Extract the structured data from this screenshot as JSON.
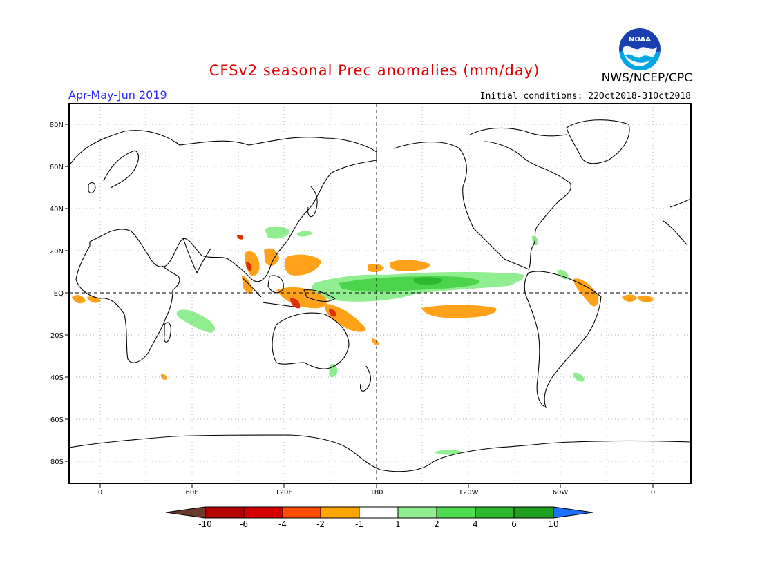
{
  "header": {
    "title": "CFSv2 seasonal Prec anomalies (mm/day)",
    "period": "Apr-May-Jun 2019",
    "initial_conditions": "Initial conditions: 22Oct2018-31Oct2018",
    "agency": "NWS/NCEP/CPC",
    "logo_text": "NOAA"
  },
  "map": {
    "lat_labels": [
      "80N",
      "60N",
      "40N",
      "20N",
      "EQ",
      "20S",
      "40S",
      "60S",
      "80S"
    ],
    "lon_labels": [
      "0",
      "60E",
      "120E",
      "180",
      "120W",
      "60W",
      "0"
    ],
    "grid": true,
    "reference_lines": "equator and 180 dashed"
  },
  "legend": {
    "labels": [
      "-10",
      "-6",
      "-4",
      "-2",
      "-1",
      "1",
      "2",
      "4",
      "6",
      "10"
    ],
    "colors": [
      "#6b3a2a",
      "#b30000",
      "#d60000",
      "#ff4d00",
      "#ffa500",
      "#ffffff",
      "#90ee90",
      "#50dc50",
      "#2db82d",
      "#1ea01e",
      "#1f70ff"
    ]
  },
  "anomaly_colors": {
    "dry": "#ffa21a",
    "very_dry": "#e03000",
    "wet": "#90ee90",
    "wetter": "#4cd44c",
    "wettest": "#2db82d"
  }
}
